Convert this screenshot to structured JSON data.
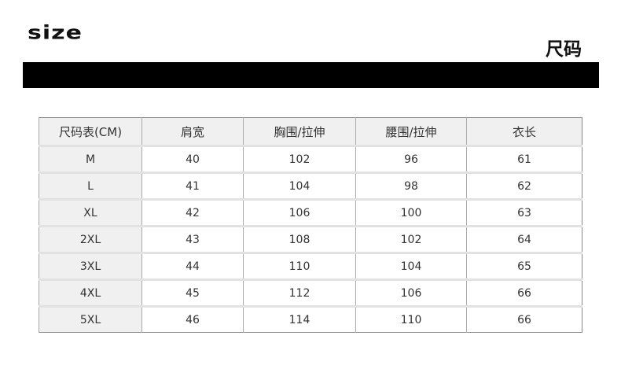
{
  "logo": "size",
  "title": "尺码",
  "table": {
    "headers": [
      "尺码表(CM)",
      "肩宽",
      "胸围/拉伸",
      "腰围/拉伸",
      "衣长"
    ],
    "rows": [
      [
        "M",
        "40",
        "102",
        "96",
        "61"
      ],
      [
        "L",
        "41",
        "104",
        "98",
        "62"
      ],
      [
        "XL",
        "42",
        "106",
        "100",
        "63"
      ],
      [
        "2XL",
        "43",
        "108",
        "102",
        "64"
      ],
      [
        "3XL",
        "44",
        "110",
        "104",
        "65"
      ],
      [
        "4XL",
        "45",
        "112",
        "106",
        "66"
      ],
      [
        "5XL",
        "46",
        "114",
        "110",
        "66"
      ]
    ]
  }
}
